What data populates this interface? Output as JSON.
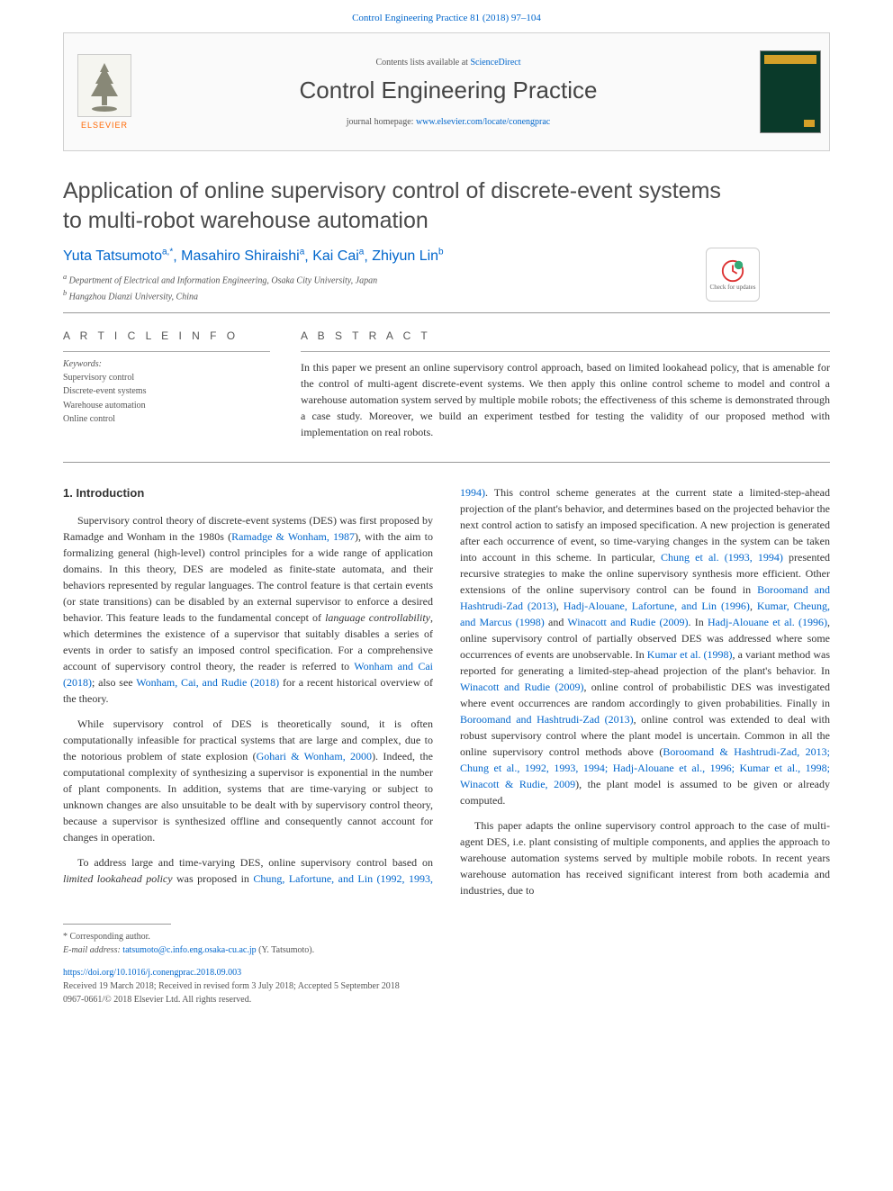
{
  "citation_line": "Control Engineering Practice 81 (2018) 97–104",
  "header": {
    "contents_prefix": "Contents lists available at ",
    "contents_link": "ScienceDirect",
    "journal_name": "Control Engineering Practice",
    "homepage_prefix": "journal homepage: ",
    "homepage_url": "www.elsevier.com/locate/conengprac",
    "publisher": "ELSEVIER",
    "logo_colors": {
      "tree": "#888877",
      "text": "#ff6600",
      "bg": "#f5f5f0"
    },
    "cover_colors": {
      "bg": "#0a3a2a",
      "accent": "#d4a028"
    }
  },
  "check_updates": "Check for updates",
  "article": {
    "title": "Application of online supervisory control of discrete-event systems to multi-robot warehouse automation",
    "authors_html": "Yuta Tatsumoto",
    "author_list": [
      {
        "name": "Yuta Tatsumoto",
        "marks": "a,*"
      },
      {
        "name": "Masahiro Shiraishi",
        "marks": "a"
      },
      {
        "name": "Kai Cai",
        "marks": "a"
      },
      {
        "name": "Zhiyun Lin",
        "marks": "b"
      }
    ],
    "affiliations": [
      "Department of Electrical and Information Engineering, Osaka City University, Japan",
      "Hangzhou Dianzi University, China"
    ]
  },
  "info": {
    "heading": "A R T I C L E   I N F O",
    "keywords_label": "Keywords:",
    "keywords": [
      "Supervisory control",
      "Discrete-event systems",
      "Warehouse automation",
      "Online control"
    ]
  },
  "abstract": {
    "heading": "A B S T R A C T",
    "text": "In this paper we present an online supervisory control approach, based on limited lookahead policy, that is amenable for the control of multi-agent discrete-event systems. We then apply this online control scheme to model and control a warehouse automation system served by multiple mobile robots; the effectiveness of this scheme is demonstrated through a case study. Moreover, we build an experiment testbed for testing the validity of our proposed method with implementation on real robots."
  },
  "section1_heading": "1.  Introduction",
  "body": {
    "p1a": "Supervisory control theory of discrete-event systems (DES) was first proposed by Ramadge and Wonham in the 1980s (",
    "p1_cite1": "Ramadge & Wonham, 1987",
    "p1b": "), with the aim to formalizing general (high-level) control principles for a wide range of application domains. In this theory, DES are modeled as finite-state automata, and their behaviors represented by regular languages. The control feature is that certain events (or state transitions) can be disabled by an external supervisor to enforce a desired behavior. This feature leads to the fundamental concept of ",
    "p1_ital": "language controllability",
    "p1c": ", which determines the existence of a supervisor that suitably disables a series of events in order to satisfy an imposed control specification. For a comprehensive account of supervisory control theory, the reader is referred to ",
    "p1_cite2": "Wonham and Cai (2018)",
    "p1d": "; also see ",
    "p1_cite3": "Wonham, Cai, and Rudie (2018)",
    "p1e": " for a recent historical overview of the theory.",
    "p2a": "While supervisory control of DES is theoretically sound, it is often computationally infeasible for practical systems that are large and complex, due to the notorious problem of state explosion (",
    "p2_cite1": "Gohari & Wonham, 2000",
    "p2b": "). Indeed, the computational complexity of synthesizing a supervisor is exponential in the number of plant components. In addition, systems that are time-varying or subject to unknown changes are also unsuitable to be dealt with by supervisory control theory, because a supervisor is synthesized offline and consequently cannot account for changes in operation.",
    "p3a": "To address large and time-varying DES, online supervisory control based on ",
    "p3_ital": "limited lookahead policy",
    "p3b": " was proposed in ",
    "p3_cite1": "Chung, Lafortune, and Lin (1992",
    "p3_cite1b": ", 1993",
    "p3_cite1c": ", 1994)",
    "p3c": ". This control scheme generates at the current state a limited-step-ahead projection of the plant's behavior, and determines based on the projected behavior the next control action to satisfy an imposed specification. A new projection is generated after each occurrence of event, so time-varying changes in the system can be taken into account in this scheme. In particular, ",
    "p3_cite2": "Chung et al. (1993",
    "p3_cite2b": ", 1994)",
    "p3d": " presented recursive strategies to make the online supervisory synthesis more efficient. Other extensions of the online supervisory control can be found in ",
    "p3_cite3": "Boroomand and Hashtrudi-Zad (2013)",
    "p3e": ", ",
    "p3_cite4": "Hadj-Alouane, Lafortune, and Lin (1996)",
    "p3f": ", ",
    "p3_cite5": "Kumar, Cheung, and Marcus (1998)",
    "p3g": " and ",
    "p3_cite6": "Winacott and Rudie (2009)",
    "p3h": ". In ",
    "p3_cite7": "Hadj-Alouane et al. (1996)",
    "p3i": ", online supervisory control of partially observed DES was addressed where some occurrences of events are unobservable. In ",
    "p3_cite8": "Kumar et al. (1998)",
    "p3j": ", a variant method was reported for generating a limited-step-ahead projection of the plant's behavior. In ",
    "p3_cite9": "Winacott and Rudie (2009)",
    "p3k": ", online control of probabilistic DES was investigated where event occurrences are random accordingly to given probabilities. Finally in ",
    "p3_cite10": "Boroomand and Hashtrudi-Zad (2013)",
    "p3l": ", online control was extended to deal with robust supervisory control where the plant model is uncertain. Common in all the online supervisory control methods above (",
    "p3_cite11": "Boroomand & Hashtrudi-Zad, 2013; Chung et al., 1992, 1993, 1994; Hadj-Alouane et al., 1996; Kumar et al., 1998; Winacott & Rudie, 2009",
    "p3m": "), the plant model is assumed to be given or already computed.",
    "p4a": "This paper adapts the online supervisory control approach to the case of multi-agent DES, i.e. plant consisting of multiple components, and applies the approach to warehouse automation systems served by multiple mobile robots. In recent years warehouse automation has received significant interest from both academia and industries, due to"
  },
  "footer": {
    "corresp_label": "* Corresponding author.",
    "email_label": "E-mail address:",
    "email": "tatsumoto@c.info.eng.osaka-cu.ac.jp",
    "email_name": "(Y. Tatsumoto).",
    "doi": "https://doi.org/10.1016/j.conengprac.2018.09.003",
    "received": "Received 19 March 2018; Received in revised form 3 July 2018; Accepted 5 September 2018",
    "copyright": "0967-0661/© 2018 Elsevier Ltd. All rights reserved."
  },
  "colors": {
    "link": "#0066cc",
    "text": "#333333",
    "muted": "#555555",
    "border": "#999999"
  }
}
